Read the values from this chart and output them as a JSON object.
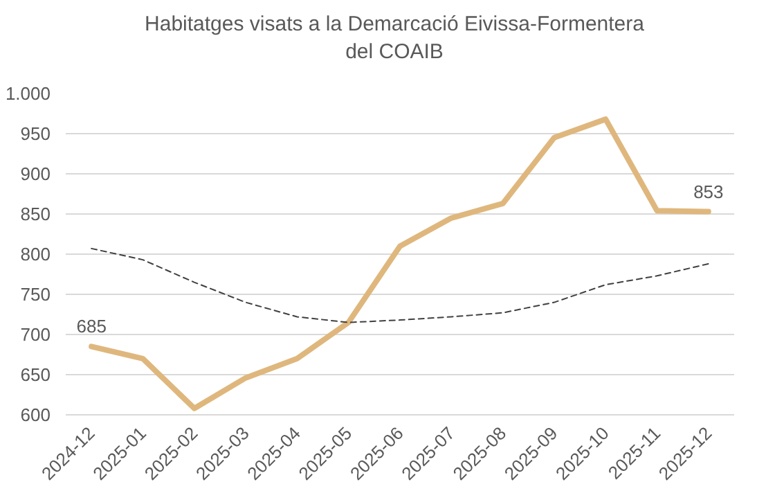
{
  "chart_data": {
    "type": "line",
    "title": "Habitatges visats a la Demarcació Eivissa-Formentera\ndel COAIB",
    "categories": [
      "2024-12",
      "2025-01",
      "2025-02",
      "2025-03",
      "2025-04",
      "2025-05",
      "2025-06",
      "2025-07",
      "2025-08",
      "2025-09",
      "2025-10",
      "2025-11",
      "2025-12"
    ],
    "series": [
      {
        "color": "#dfb77d",
        "values": [
          685,
          670,
          608,
          646,
          670,
          715,
          810,
          845,
          863,
          945,
          968,
          854,
          853
        ],
        "value_labels": [
          "685",
          null,
          null,
          null,
          null,
          null,
          null,
          null,
          null,
          null,
          null,
          null,
          "853"
        ]
      },
      {
        "color": "#404040",
        "line_style": "dashed",
        "values": [
          807,
          793,
          765,
          740,
          722,
          715,
          718,
          722,
          727,
          740,
          762,
          773,
          788
        ]
      }
    ],
    "ylim": [
      600,
      1000
    ],
    "yticks": [
      600,
      650,
      700,
      750,
      800,
      850,
      900,
      950,
      {
        "value": 1000,
        "label": "1.000"
      }
    ],
    "grid": "y"
  }
}
